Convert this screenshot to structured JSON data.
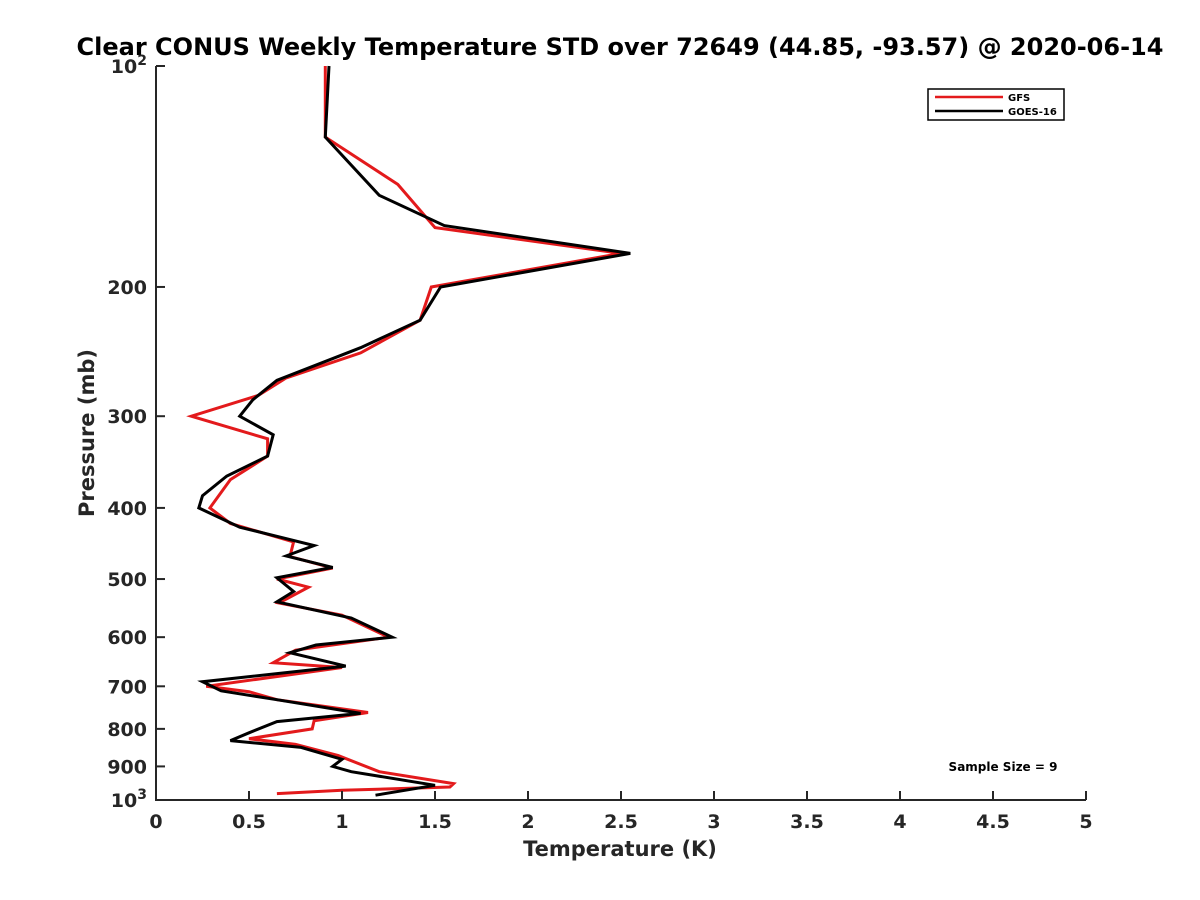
{
  "chart_data": {
    "type": "line",
    "title": "Clear CONUS Weekly Temperature STD over 72649 (44.85, -93.57) @ 2020-06-14",
    "xlabel": "Temperature (K)",
    "ylabel": "Pressure (mb)",
    "xlim": [
      0,
      5
    ],
    "ylim": [
      100,
      1000
    ],
    "y_scale": "log",
    "y_reversed": true,
    "grid": false,
    "legend_position": "top-right",
    "x_ticks": [
      {
        "value": 0,
        "label": "0"
      },
      {
        "value": 0.5,
        "label": "0.5"
      },
      {
        "value": 1,
        "label": "1"
      },
      {
        "value": 1.5,
        "label": "1.5"
      },
      {
        "value": 2,
        "label": "2"
      },
      {
        "value": 2.5,
        "label": "2.5"
      },
      {
        "value": 3,
        "label": "3"
      },
      {
        "value": 3.5,
        "label": "3.5"
      },
      {
        "value": 4,
        "label": "4"
      },
      {
        "value": 4.5,
        "label": "4.5"
      },
      {
        "value": 5,
        "label": "5"
      }
    ],
    "y_ticks": [
      {
        "value": 100,
        "label": "10",
        "sup": "2"
      },
      {
        "value": 200,
        "label": "200"
      },
      {
        "value": 300,
        "label": "300"
      },
      {
        "value": 400,
        "label": "400"
      },
      {
        "value": 500,
        "label": "500"
      },
      {
        "value": 600,
        "label": "600"
      },
      {
        "value": 700,
        "label": "700"
      },
      {
        "value": 800,
        "label": "800"
      },
      {
        "value": 900,
        "label": "900"
      },
      {
        "value": 1000,
        "label": "10",
        "sup": "3"
      }
    ],
    "annotation": "Sample Size = 9",
    "series": [
      {
        "name": "GFS",
        "color": "#e31a1c",
        "points": [
          {
            "x": 0.91,
            "y": 100
          },
          {
            "x": 0.91,
            "y": 125
          },
          {
            "x": 1.3,
            "y": 145
          },
          {
            "x": 1.5,
            "y": 166
          },
          {
            "x": 2.5,
            "y": 180
          },
          {
            "x": 1.48,
            "y": 200
          },
          {
            "x": 1.42,
            "y": 222
          },
          {
            "x": 1.1,
            "y": 246
          },
          {
            "x": 0.7,
            "y": 266
          },
          {
            "x": 0.55,
            "y": 281
          },
          {
            "x": 0.19,
            "y": 300
          },
          {
            "x": 0.6,
            "y": 322
          },
          {
            "x": 0.6,
            "y": 340
          },
          {
            "x": 0.4,
            "y": 366
          },
          {
            "x": 0.29,
            "y": 400
          },
          {
            "x": 0.4,
            "y": 420
          },
          {
            "x": 0.74,
            "y": 445
          },
          {
            "x": 0.72,
            "y": 466
          },
          {
            "x": 0.95,
            "y": 483
          },
          {
            "x": 0.65,
            "y": 500
          },
          {
            "x": 0.82,
            "y": 513
          },
          {
            "x": 0.66,
            "y": 539
          },
          {
            "x": 1.0,
            "y": 560
          },
          {
            "x": 1.25,
            "y": 600
          },
          {
            "x": 0.75,
            "y": 625
          },
          {
            "x": 0.63,
            "y": 650
          },
          {
            "x": 1.0,
            "y": 660
          },
          {
            "x": 0.27,
            "y": 700
          },
          {
            "x": 0.5,
            "y": 712
          },
          {
            "x": 0.65,
            "y": 730
          },
          {
            "x": 1.14,
            "y": 760
          },
          {
            "x": 0.85,
            "y": 780
          },
          {
            "x": 0.84,
            "y": 800
          },
          {
            "x": 0.5,
            "y": 825
          },
          {
            "x": 0.75,
            "y": 840
          },
          {
            "x": 0.98,
            "y": 870
          },
          {
            "x": 1.2,
            "y": 915
          },
          {
            "x": 1.6,
            "y": 950
          },
          {
            "x": 1.58,
            "y": 960
          },
          {
            "x": 1.0,
            "y": 970
          },
          {
            "x": 0.65,
            "y": 980
          }
        ]
      },
      {
        "name": "GOES-16",
        "color": "#000000",
        "points": [
          {
            "x": 0.93,
            "y": 100
          },
          {
            "x": 0.91,
            "y": 125
          },
          {
            "x": 1.2,
            "y": 150
          },
          {
            "x": 1.55,
            "y": 165
          },
          {
            "x": 2.55,
            "y": 180
          },
          {
            "x": 1.53,
            "y": 200
          },
          {
            "x": 1.42,
            "y": 222
          },
          {
            "x": 1.1,
            "y": 242
          },
          {
            "x": 0.65,
            "y": 268
          },
          {
            "x": 0.52,
            "y": 285
          },
          {
            "x": 0.45,
            "y": 300
          },
          {
            "x": 0.63,
            "y": 318
          },
          {
            "x": 0.6,
            "y": 340
          },
          {
            "x": 0.38,
            "y": 362
          },
          {
            "x": 0.25,
            "y": 385
          },
          {
            "x": 0.23,
            "y": 400
          },
          {
            "x": 0.45,
            "y": 425
          },
          {
            "x": 0.85,
            "y": 450
          },
          {
            "x": 0.7,
            "y": 465
          },
          {
            "x": 0.95,
            "y": 482
          },
          {
            "x": 0.65,
            "y": 498
          },
          {
            "x": 0.74,
            "y": 520
          },
          {
            "x": 0.65,
            "y": 537
          },
          {
            "x": 1.05,
            "y": 565
          },
          {
            "x": 1.27,
            "y": 600
          },
          {
            "x": 0.86,
            "y": 615
          },
          {
            "x": 0.72,
            "y": 630
          },
          {
            "x": 1.02,
            "y": 657
          },
          {
            "x": 0.25,
            "y": 690
          },
          {
            "x": 0.35,
            "y": 710
          },
          {
            "x": 0.65,
            "y": 730
          },
          {
            "x": 1.1,
            "y": 762
          },
          {
            "x": 0.65,
            "y": 782
          },
          {
            "x": 0.5,
            "y": 810
          },
          {
            "x": 0.4,
            "y": 830
          },
          {
            "x": 0.78,
            "y": 848
          },
          {
            "x": 1.0,
            "y": 880
          },
          {
            "x": 0.95,
            "y": 900
          },
          {
            "x": 1.05,
            "y": 915
          },
          {
            "x": 1.5,
            "y": 955
          },
          {
            "x": 1.18,
            "y": 985
          }
        ]
      }
    ]
  }
}
